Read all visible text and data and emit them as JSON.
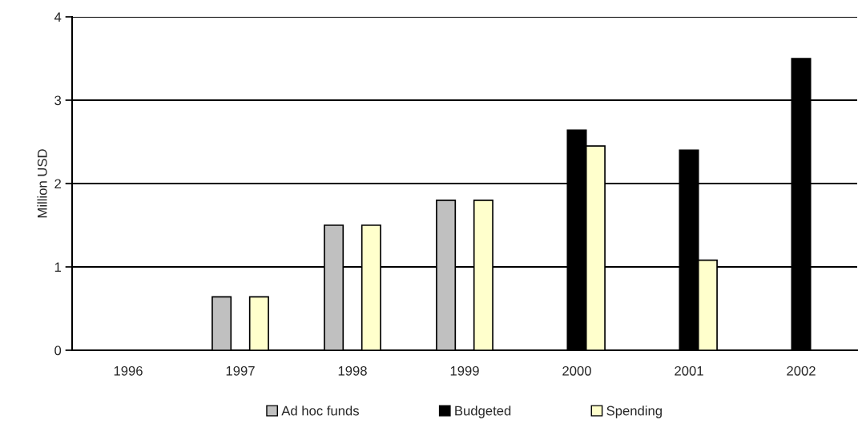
{
  "chart_data": {
    "type": "bar",
    "ylabel": "Million USD",
    "categories": [
      "1996",
      "1997",
      "1998",
      "1999",
      "2000",
      "2001",
      "2002"
    ],
    "series": [
      {
        "name": "Ad hoc funds",
        "color": "#c0c0c0",
        "values": [
          null,
          0.64,
          1.5,
          1.8,
          null,
          null,
          null
        ]
      },
      {
        "name": "Budgeted",
        "color": "#000000",
        "values": [
          null,
          null,
          null,
          null,
          2.64,
          2.4,
          3.5
        ]
      },
      {
        "name": "Spending",
        "color": "#ffffcc",
        "values": [
          null,
          0.64,
          1.5,
          1.8,
          2.45,
          1.08,
          null
        ]
      }
    ],
    "ylim": [
      0,
      4
    ],
    "yticks": [
      0,
      1,
      2,
      3,
      4
    ],
    "grid": "y",
    "legend": "bottom"
  }
}
